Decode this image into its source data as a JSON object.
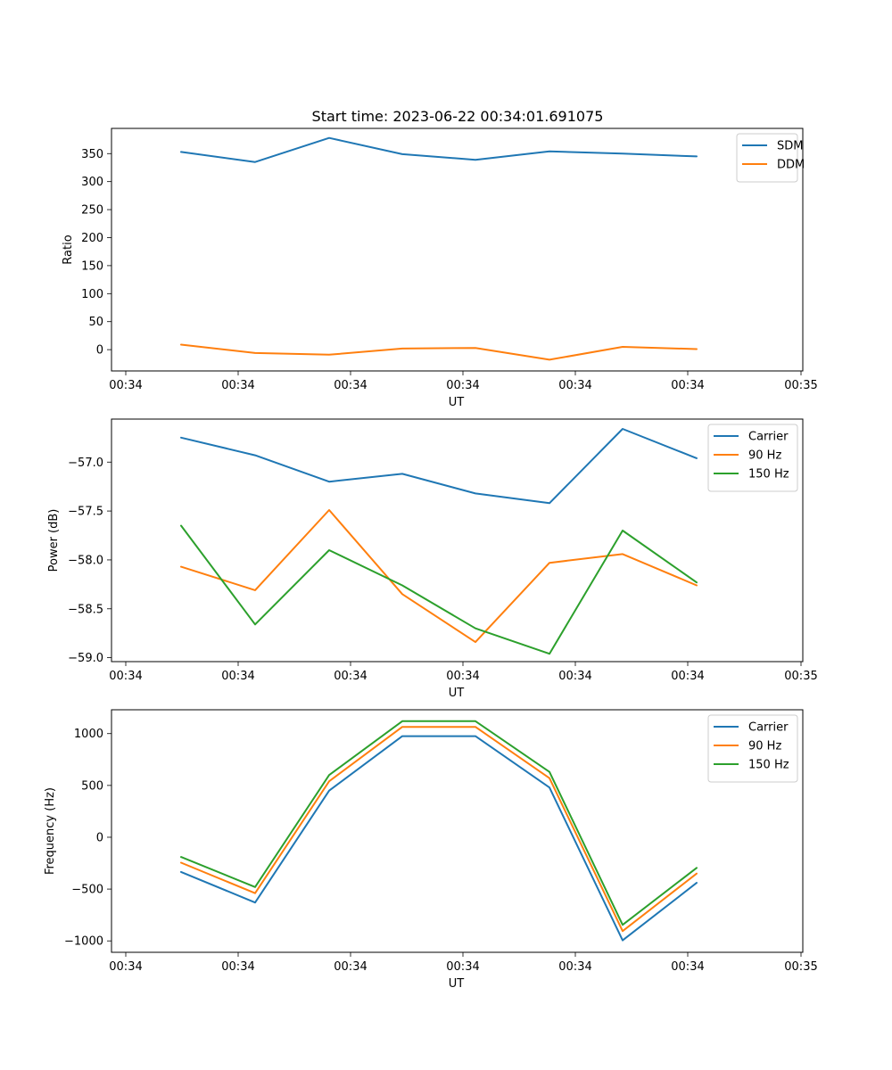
{
  "figure": {
    "title": "Start time: 2023-06-22 00:34:01.691075"
  },
  "colors": {
    "blue": "#1f77b4",
    "orange": "#ff7f0e",
    "green": "#2ca02c"
  },
  "chart_data": [
    {
      "type": "line",
      "title": "Start time: 2023-06-22 00:34:01.691075",
      "xlabel": "UT",
      "ylabel": "Ratio",
      "x_ticks": [
        "00:34",
        "00:34",
        "00:34",
        "00:34",
        "00:34",
        "00:34",
        "00:34",
        "00:35"
      ],
      "y_ticks": [
        0,
        50,
        100,
        150,
        200,
        250,
        300,
        350
      ],
      "ylim": [
        -38,
        395
      ],
      "grid": false,
      "legend_position": "upper right",
      "series": [
        {
          "name": "SDM",
          "color": "#1f77b4",
          "values": [
            353,
            335,
            378,
            349,
            339,
            354,
            350,
            345
          ]
        },
        {
          "name": "DDM",
          "color": "#ff7f0e",
          "values": [
            9,
            -6,
            -9,
            2,
            3,
            -18,
            5,
            1
          ]
        }
      ]
    },
    {
      "type": "line",
      "title": "",
      "xlabel": "UT",
      "ylabel": "Power (dB)",
      "x_ticks": [
        "00:34",
        "00:34",
        "00:34",
        "00:34",
        "00:34",
        "00:34",
        "00:34",
        "00:35"
      ],
      "y_ticks": [
        -59.0,
        -58.5,
        -58.0,
        -57.5,
        -57.0
      ],
      "y_tick_labels": [
        "−59.0",
        "−58.5",
        "−58.0",
        "−57.5",
        "−57.0"
      ],
      "ylim": [
        -59.04,
        -56.56
      ],
      "grid": false,
      "legend_position": "upper right",
      "series": [
        {
          "name": "Carrier",
          "color": "#1f77b4",
          "values": [
            -56.75,
            -56.93,
            -57.2,
            -57.12,
            -57.32,
            -57.42,
            -56.66,
            -56.96
          ]
        },
        {
          "name": "90 Hz",
          "color": "#ff7f0e",
          "values": [
            -58.07,
            -58.31,
            -57.49,
            -58.35,
            -58.84,
            -58.03,
            -57.94,
            -58.26
          ]
        },
        {
          "name": "150 Hz",
          "color": "#2ca02c",
          "values": [
            -57.65,
            -58.66,
            -57.9,
            -58.26,
            -58.7,
            -58.96,
            -57.7,
            -58.23
          ]
        }
      ]
    },
    {
      "type": "line",
      "title": "",
      "xlabel": "UT",
      "ylabel": "Frequency (Hz)",
      "x_ticks": [
        "00:34",
        "00:34",
        "00:34",
        "00:34",
        "00:34",
        "00:34",
        "00:34",
        "00:35"
      ],
      "y_ticks": [
        -1000,
        -500,
        0,
        500,
        1000
      ],
      "y_tick_labels": [
        "−1000",
        "−500",
        "0",
        "500",
        "1000"
      ],
      "ylim": [
        -1110,
        1230
      ],
      "grid": false,
      "legend_position": "upper right",
      "series": [
        {
          "name": "Carrier",
          "color": "#1f77b4",
          "values": [
            -335,
            -630,
            450,
            975,
            975,
            480,
            -995,
            -440
          ]
        },
        {
          "name": "90 Hz",
          "color": "#ff7f0e",
          "values": [
            -245,
            -540,
            540,
            1065,
            1065,
            570,
            -905,
            -350
          ]
        },
        {
          "name": "150 Hz",
          "color": "#2ca02c",
          "values": [
            -190,
            -480,
            600,
            1120,
            1120,
            630,
            -845,
            -295
          ]
        }
      ]
    }
  ]
}
